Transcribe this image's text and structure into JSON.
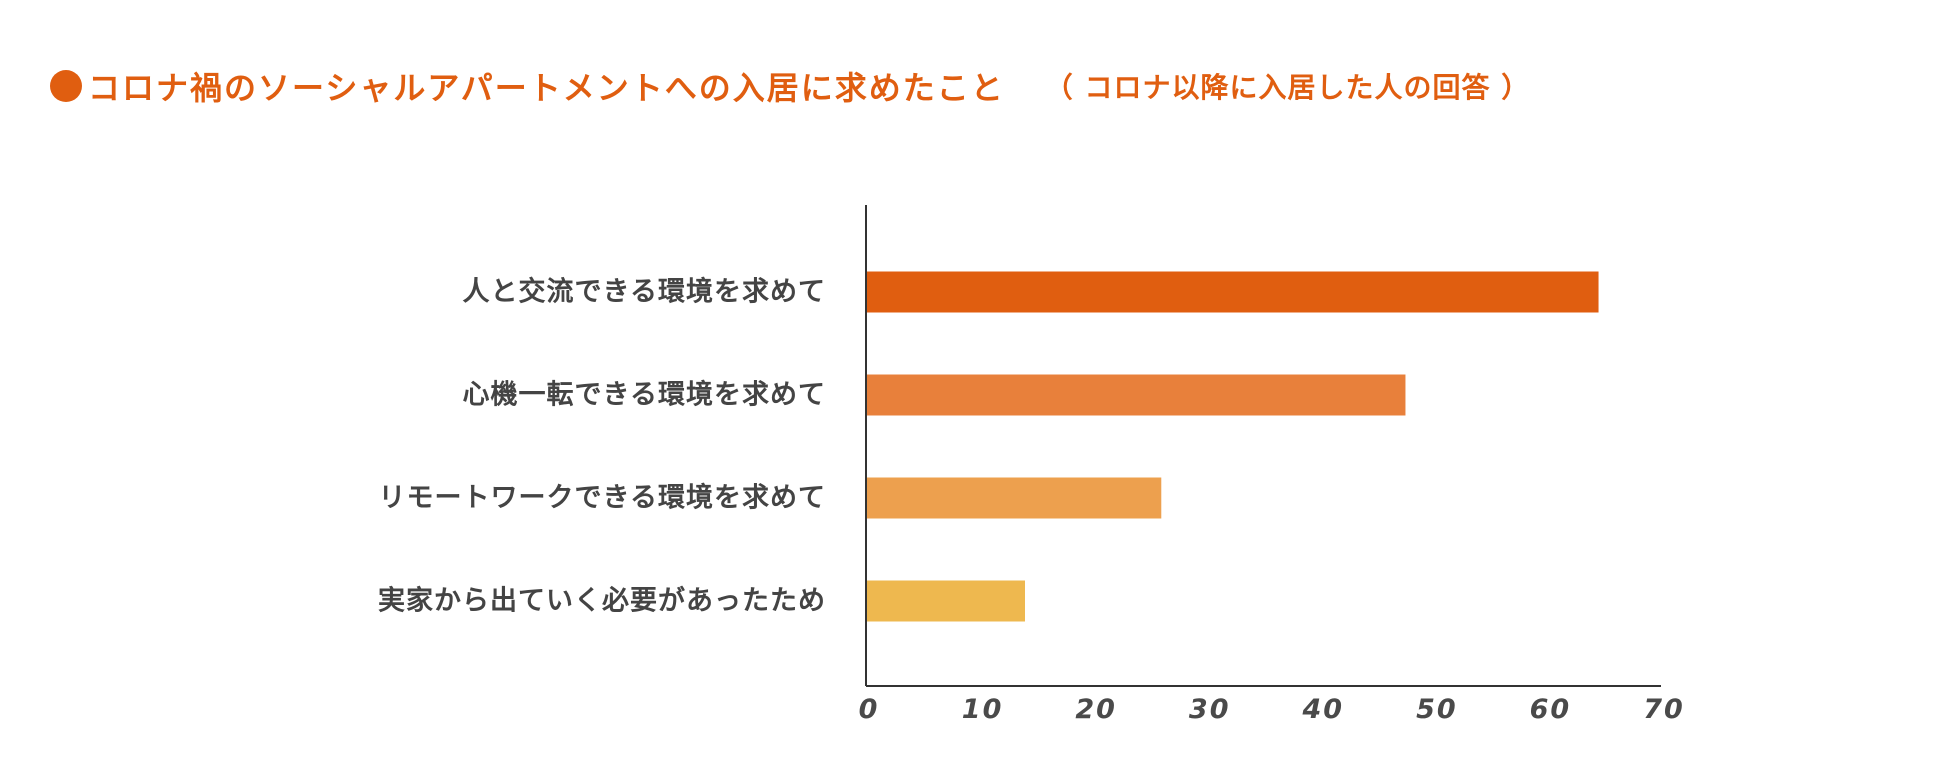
{
  "header": {
    "title": "コロナ禍のソーシャルアパートメントへの入居に求めたこと",
    "subtitle": "（ コロナ以降に入居した人の回答 ）"
  },
  "colors": {
    "accent": "#e05e10",
    "axis": "#333333"
  },
  "chart_data": {
    "type": "bar",
    "orientation": "horizontal",
    "title": "コロナ禍のソーシャルアパートメントへの入居に求めたこと",
    "subtitle": "（ コロナ以降に入居した人の回答 ）",
    "categories": [
      "人と交流できる環境を求めて",
      "心機一転できる環境を求めて",
      "リモートワークできる環境を求めて",
      "実家から出ていく必要があったため"
    ],
    "values": [
      64.5,
      47.5,
      26,
      14
    ],
    "bar_colors": [
      "#e05e10",
      "#e8803b",
      "#eda04e",
      "#eeb84f"
    ],
    "xlim": [
      0,
      70
    ],
    "xticks": [
      "0",
      "10",
      "20",
      "30",
      "40",
      "50",
      "60",
      "70"
    ],
    "xlabel": "",
    "ylabel": "",
    "grid": false,
    "legend": "none"
  }
}
